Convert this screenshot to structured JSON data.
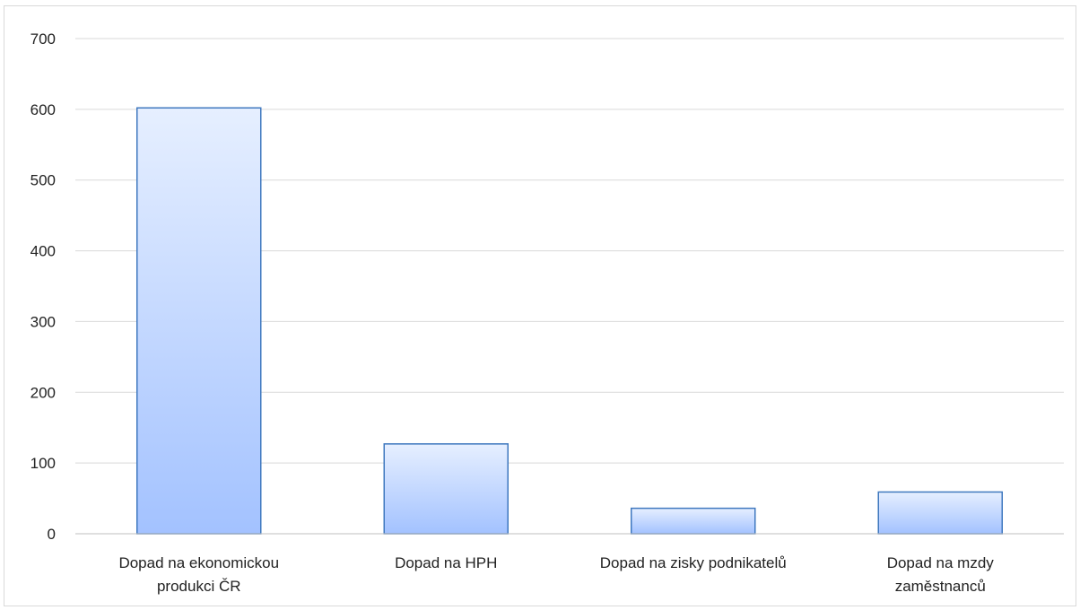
{
  "chart_data": {
    "type": "bar",
    "title": "",
    "xlabel": "",
    "ylabel": "",
    "ylim": [
      0,
      700
    ],
    "yticks": [
      0,
      100,
      200,
      300,
      400,
      500,
      600,
      700
    ],
    "grid": true,
    "legend": "none",
    "categories": [
      [
        "Dopad na ekonomickou",
        "produkci ČR"
      ],
      [
        "Dopad na HPH"
      ],
      [
        "Dopad na zisky podnikatelů"
      ],
      [
        "Dopad na mzdy",
        "zaměstnanců"
      ]
    ],
    "values": [
      602,
      127,
      36,
      59
    ],
    "colors": {
      "bar_top": "#e6efff",
      "bar_bottom": "#a3c2ff",
      "bar_border": "#3f78bf",
      "grid": "#d9d9d9",
      "axis": "#bfbfbf"
    }
  }
}
